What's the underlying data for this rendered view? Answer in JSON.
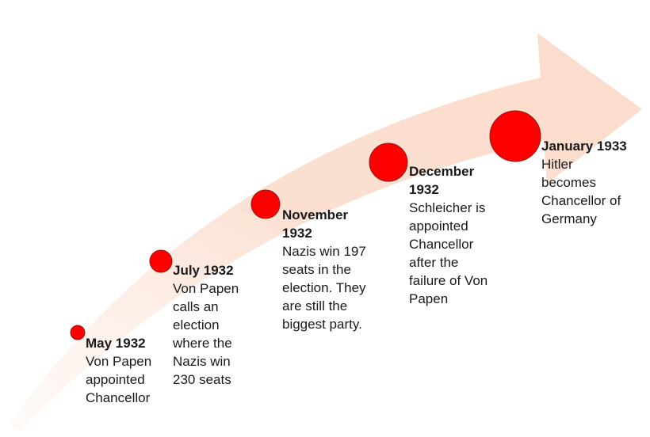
{
  "events": [
    {
      "date": "May 1932",
      "description": [
        "Von Papen",
        "appointed",
        "Chancellor"
      ]
    },
    {
      "date": "July 1932",
      "description": [
        "Von Papen",
        "calls an",
        "election",
        "where the",
        "Nazis win",
        "230 seats"
      ]
    },
    {
      "date": "November 1932",
      "description": [
        "Nazis win 197",
        "seats in the",
        "election. They",
        "are still the",
        "biggest party."
      ]
    },
    {
      "date": "December 1932",
      "description": [
        "Schleicher is",
        "appointed",
        "Chancellor",
        "after the",
        "failure of Von",
        "Papen"
      ]
    },
    {
      "date": "January 1933",
      "description": [
        "Hitler",
        "becomes",
        "Chancellor of",
        "Germany"
      ]
    }
  ]
}
